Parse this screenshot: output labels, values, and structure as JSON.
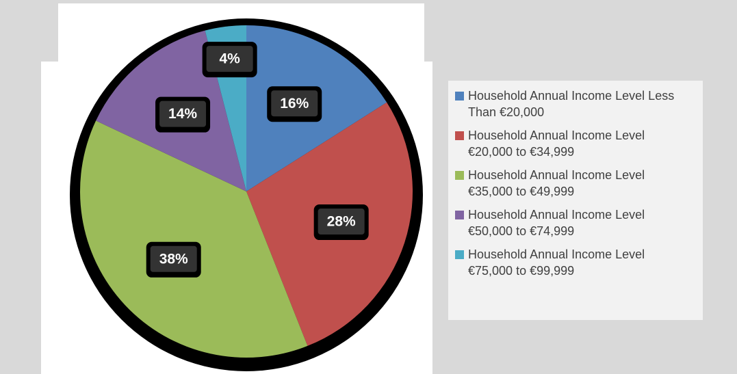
{
  "chart_data": {
    "type": "pie",
    "categories": [
      "Household Annual Income Level Less Than €20,000",
      "Household Annual Income Level €20,000 to €34,999",
      "Household Annual Income Level €35,000 to €49,999",
      "Household Annual Income Level €50,000 to €74,999",
      "Household Annual Income Level €75,000 to €99,999"
    ],
    "values": [
      16,
      28,
      38,
      14,
      4
    ],
    "value_labels": [
      "16%",
      "28%",
      "38%",
      "14%",
      "4%"
    ],
    "colors": [
      "#4f81bd",
      "#c0504d",
      "#9bbb59",
      "#8064a2",
      "#4bacc6"
    ],
    "legend": "right"
  }
}
